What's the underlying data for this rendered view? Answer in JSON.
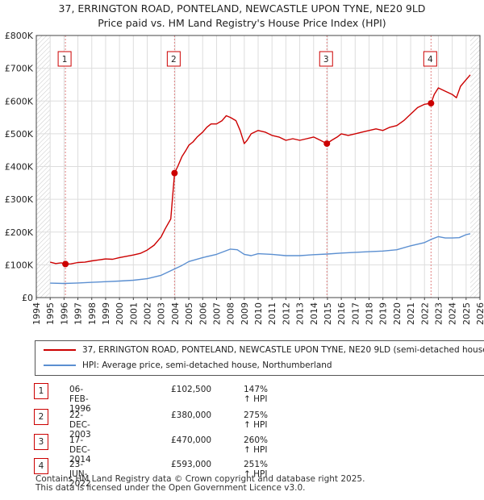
{
  "title_line1": "37, ERRINGTON ROAD, PONTELAND, NEWCASTLE UPON TYNE, NE20 9LD",
  "title_line2": "Price paid vs. HM Land Registry's House Price Index (HPI)",
  "chart_data": {
    "type": "line",
    "title": "37, ERRINGTON ROAD, PONTELAND, NEWCASTLE UPON TYNE, NE20 9LD — Price paid vs. HM Land Registry's House Price Index (HPI)",
    "xlabel": "",
    "ylabel": "",
    "xlim": [
      1994,
      2026
    ],
    "ylim": [
      0,
      800000
    ],
    "x_ticks": [
      1994,
      1995,
      1996,
      1997,
      1998,
      1999,
      2000,
      2001,
      2002,
      2003,
      2004,
      2005,
      2006,
      2007,
      2008,
      2009,
      2010,
      2011,
      2012,
      2013,
      2014,
      2015,
      2016,
      2017,
      2018,
      2019,
      2020,
      2021,
      2022,
      2023,
      2024,
      2025,
      2026
    ],
    "y_ticks": [
      {
        "value": 0,
        "label": "£0"
      },
      {
        "value": 100000,
        "label": "£100K"
      },
      {
        "value": 200000,
        "label": "£200K"
      },
      {
        "value": 300000,
        "label": "£300K"
      },
      {
        "value": 400000,
        "label": "£400K"
      },
      {
        "value": 500000,
        "label": "£500K"
      },
      {
        "value": 600000,
        "label": "£600K"
      },
      {
        "value": 700000,
        "label": "£700K"
      },
      {
        "value": 800000,
        "label": "£800K"
      }
    ],
    "grid": true,
    "hatched_regions": [
      [
        1994,
        1995
      ],
      [
        2025.3,
        2026
      ]
    ],
    "series": [
      {
        "name": "37, ERRINGTON ROAD, PONTELAND, NEWCASTLE UPON TYNE, NE20 9LD (semi-detached house)",
        "color": "#cc0000",
        "points": [
          [
            1995.0,
            108000
          ],
          [
            1995.4,
            104000
          ],
          [
            1995.8,
            106000
          ],
          [
            1996.1,
            102500
          ],
          [
            1996.5,
            103000
          ],
          [
            1997.0,
            107000
          ],
          [
            1997.5,
            108000
          ],
          [
            1998.0,
            112000
          ],
          [
            1998.5,
            115000
          ],
          [
            1999.0,
            118000
          ],
          [
            1999.5,
            117000
          ],
          [
            2000.0,
            122000
          ],
          [
            2000.5,
            126000
          ],
          [
            2001.0,
            130000
          ],
          [
            2001.5,
            135000
          ],
          [
            2002.0,
            145000
          ],
          [
            2002.5,
            160000
          ],
          [
            2003.0,
            185000
          ],
          [
            2003.3,
            210000
          ],
          [
            2003.7,
            240000
          ],
          [
            2003.97,
            380000
          ],
          [
            2004.2,
            400000
          ],
          [
            2004.5,
            430000
          ],
          [
            2004.8,
            450000
          ],
          [
            2005.0,
            465000
          ],
          [
            2005.3,
            475000
          ],
          [
            2005.6,
            490000
          ],
          [
            2006.0,
            505000
          ],
          [
            2006.3,
            520000
          ],
          [
            2006.6,
            530000
          ],
          [
            2007.0,
            530000
          ],
          [
            2007.4,
            540000
          ],
          [
            2007.7,
            555000
          ],
          [
            2008.0,
            550000
          ],
          [
            2008.4,
            540000
          ],
          [
            2008.7,
            510000
          ],
          [
            2009.0,
            470000
          ],
          [
            2009.2,
            480000
          ],
          [
            2009.5,
            500000
          ],
          [
            2010.0,
            510000
          ],
          [
            2010.5,
            505000
          ],
          [
            2011.0,
            495000
          ],
          [
            2011.5,
            490000
          ],
          [
            2012.0,
            480000
          ],
          [
            2012.5,
            485000
          ],
          [
            2013.0,
            480000
          ],
          [
            2013.5,
            485000
          ],
          [
            2014.0,
            490000
          ],
          [
            2014.5,
            480000
          ],
          [
            2014.96,
            470000
          ],
          [
            2015.3,
            480000
          ],
          [
            2015.7,
            490000
          ],
          [
            2016.0,
            500000
          ],
          [
            2016.5,
            495000
          ],
          [
            2017.0,
            500000
          ],
          [
            2017.5,
            505000
          ],
          [
            2018.0,
            510000
          ],
          [
            2018.5,
            515000
          ],
          [
            2019.0,
            510000
          ],
          [
            2019.5,
            520000
          ],
          [
            2020.0,
            525000
          ],
          [
            2020.5,
            540000
          ],
          [
            2021.0,
            560000
          ],
          [
            2021.5,
            580000
          ],
          [
            2022.0,
            590000
          ],
          [
            2022.47,
            593000
          ],
          [
            2022.7,
            620000
          ],
          [
            2023.0,
            640000
          ],
          [
            2023.5,
            630000
          ],
          [
            2024.0,
            620000
          ],
          [
            2024.3,
            610000
          ],
          [
            2024.6,
            645000
          ],
          [
            2025.0,
            665000
          ],
          [
            2025.3,
            680000
          ]
        ]
      },
      {
        "name": "HPI: Average price, semi-detached house, Northumberland",
        "color": "#5b8fd1",
        "points": [
          [
            1995.0,
            44000
          ],
          [
            1996.0,
            43000
          ],
          [
            1997.0,
            44500
          ],
          [
            1998.0,
            46500
          ],
          [
            1999.0,
            48500
          ],
          [
            2000.0,
            50500
          ],
          [
            2001.0,
            53000
          ],
          [
            2002.0,
            57500
          ],
          [
            2003.0,
            68000
          ],
          [
            2004.0,
            88000
          ],
          [
            2004.5,
            98000
          ],
          [
            2005.0,
            110000
          ],
          [
            2006.0,
            122000
          ],
          [
            2007.0,
            132000
          ],
          [
            2008.0,
            148000
          ],
          [
            2008.5,
            146000
          ],
          [
            2009.0,
            132000
          ],
          [
            2009.5,
            128000
          ],
          [
            2010.0,
            134000
          ],
          [
            2011.0,
            132000
          ],
          [
            2012.0,
            128000
          ],
          [
            2013.0,
            128000
          ],
          [
            2014.0,
            131000
          ],
          [
            2015.0,
            133000
          ],
          [
            2016.0,
            136000
          ],
          [
            2017.0,
            138000
          ],
          [
            2018.0,
            140000
          ],
          [
            2019.0,
            142000
          ],
          [
            2020.0,
            146000
          ],
          [
            2021.0,
            158000
          ],
          [
            2022.0,
            168000
          ],
          [
            2022.5,
            178000
          ],
          [
            2023.0,
            186000
          ],
          [
            2023.5,
            182000
          ],
          [
            2024.0,
            182000
          ],
          [
            2024.5,
            183000
          ],
          [
            2025.0,
            192000
          ],
          [
            2025.3,
            195000
          ]
        ]
      }
    ],
    "sales": [
      {
        "num": "1",
        "x": 1996.1,
        "price": 102500
      },
      {
        "num": "2",
        "x": 2003.97,
        "price": 380000
      },
      {
        "num": "3",
        "x": 2014.96,
        "price": 470000
      },
      {
        "num": "4",
        "x": 2022.47,
        "price": 593000
      }
    ]
  },
  "legend": [
    {
      "label": "37, ERRINGTON ROAD, PONTELAND, NEWCASTLE UPON TYNE, NE20 9LD (semi-detached house)",
      "color": "#cc0000"
    },
    {
      "label": "HPI: Average price, semi-detached house, Northumberland",
      "color": "#5b8fd1"
    }
  ],
  "transactions": [
    {
      "num": "1",
      "date": "06-FEB-1996",
      "price": "£102,500",
      "hpi": "147% ↑ HPI"
    },
    {
      "num": "2",
      "date": "22-DEC-2003",
      "price": "£380,000",
      "hpi": "275% ↑ HPI"
    },
    {
      "num": "3",
      "date": "17-DEC-2014",
      "price": "£470,000",
      "hpi": "260% ↑ HPI"
    },
    {
      "num": "4",
      "date": "23-JUN-2022",
      "price": "£593,000",
      "hpi": "251% ↑ HPI"
    }
  ],
  "footer_line1": "Contains HM Land Registry data © Crown copyright and database right 2025.",
  "footer_line2": "This data is licensed under the Open Government Licence v3.0."
}
